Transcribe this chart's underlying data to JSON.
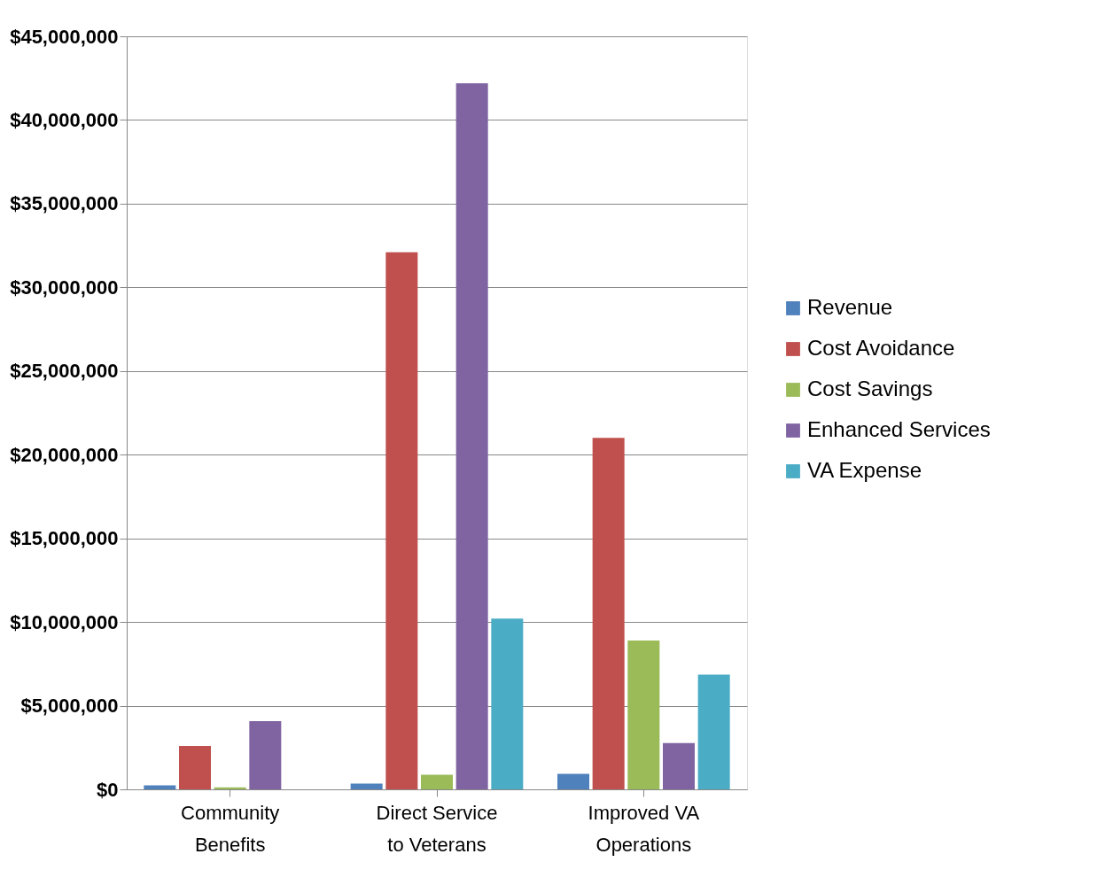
{
  "chart_data": {
    "type": "bar",
    "categories": [
      "Community Benefits",
      "Direct Service to Veterans",
      "Improved VA Operations"
    ],
    "series": [
      {
        "name": "Revenue",
        "color": "#4f81bd",
        "values": [
          240000,
          340000,
          920000
        ]
      },
      {
        "name": "Cost Avoidance",
        "color": "#c0504d",
        "values": [
          2600000,
          32100000,
          21000000
        ]
      },
      {
        "name": "Cost Savings",
        "color": "#9bbb59",
        "values": [
          120000,
          870000,
          8900000
        ]
      },
      {
        "name": "Enhanced Services",
        "color": "#8064a2",
        "values": [
          4080000,
          42200000,
          2770000
        ]
      },
      {
        "name": "VA Expense",
        "color": "#4bacc6",
        "values": [
          0,
          10200000,
          6860000
        ]
      }
    ],
    "ylim": [
      0,
      45000000
    ],
    "yticks": [
      {
        "value": 0,
        "label": "$0"
      },
      {
        "value": 5000000,
        "label": "$5,000,000"
      },
      {
        "value": 10000000,
        "label": "$10,000,000"
      },
      {
        "value": 15000000,
        "label": "$15,000,000"
      },
      {
        "value": 20000000,
        "label": "$20,000,000"
      },
      {
        "value": 25000000,
        "label": "$25,000,000"
      },
      {
        "value": 30000000,
        "label": "$30,000,000"
      },
      {
        "value": 35000000,
        "label": "$35,000,000"
      },
      {
        "value": 40000000,
        "label": "$40,000,000"
      },
      {
        "value": 45000000,
        "label": "$45,000,000"
      }
    ],
    "grid": "y",
    "legend": "right"
  }
}
